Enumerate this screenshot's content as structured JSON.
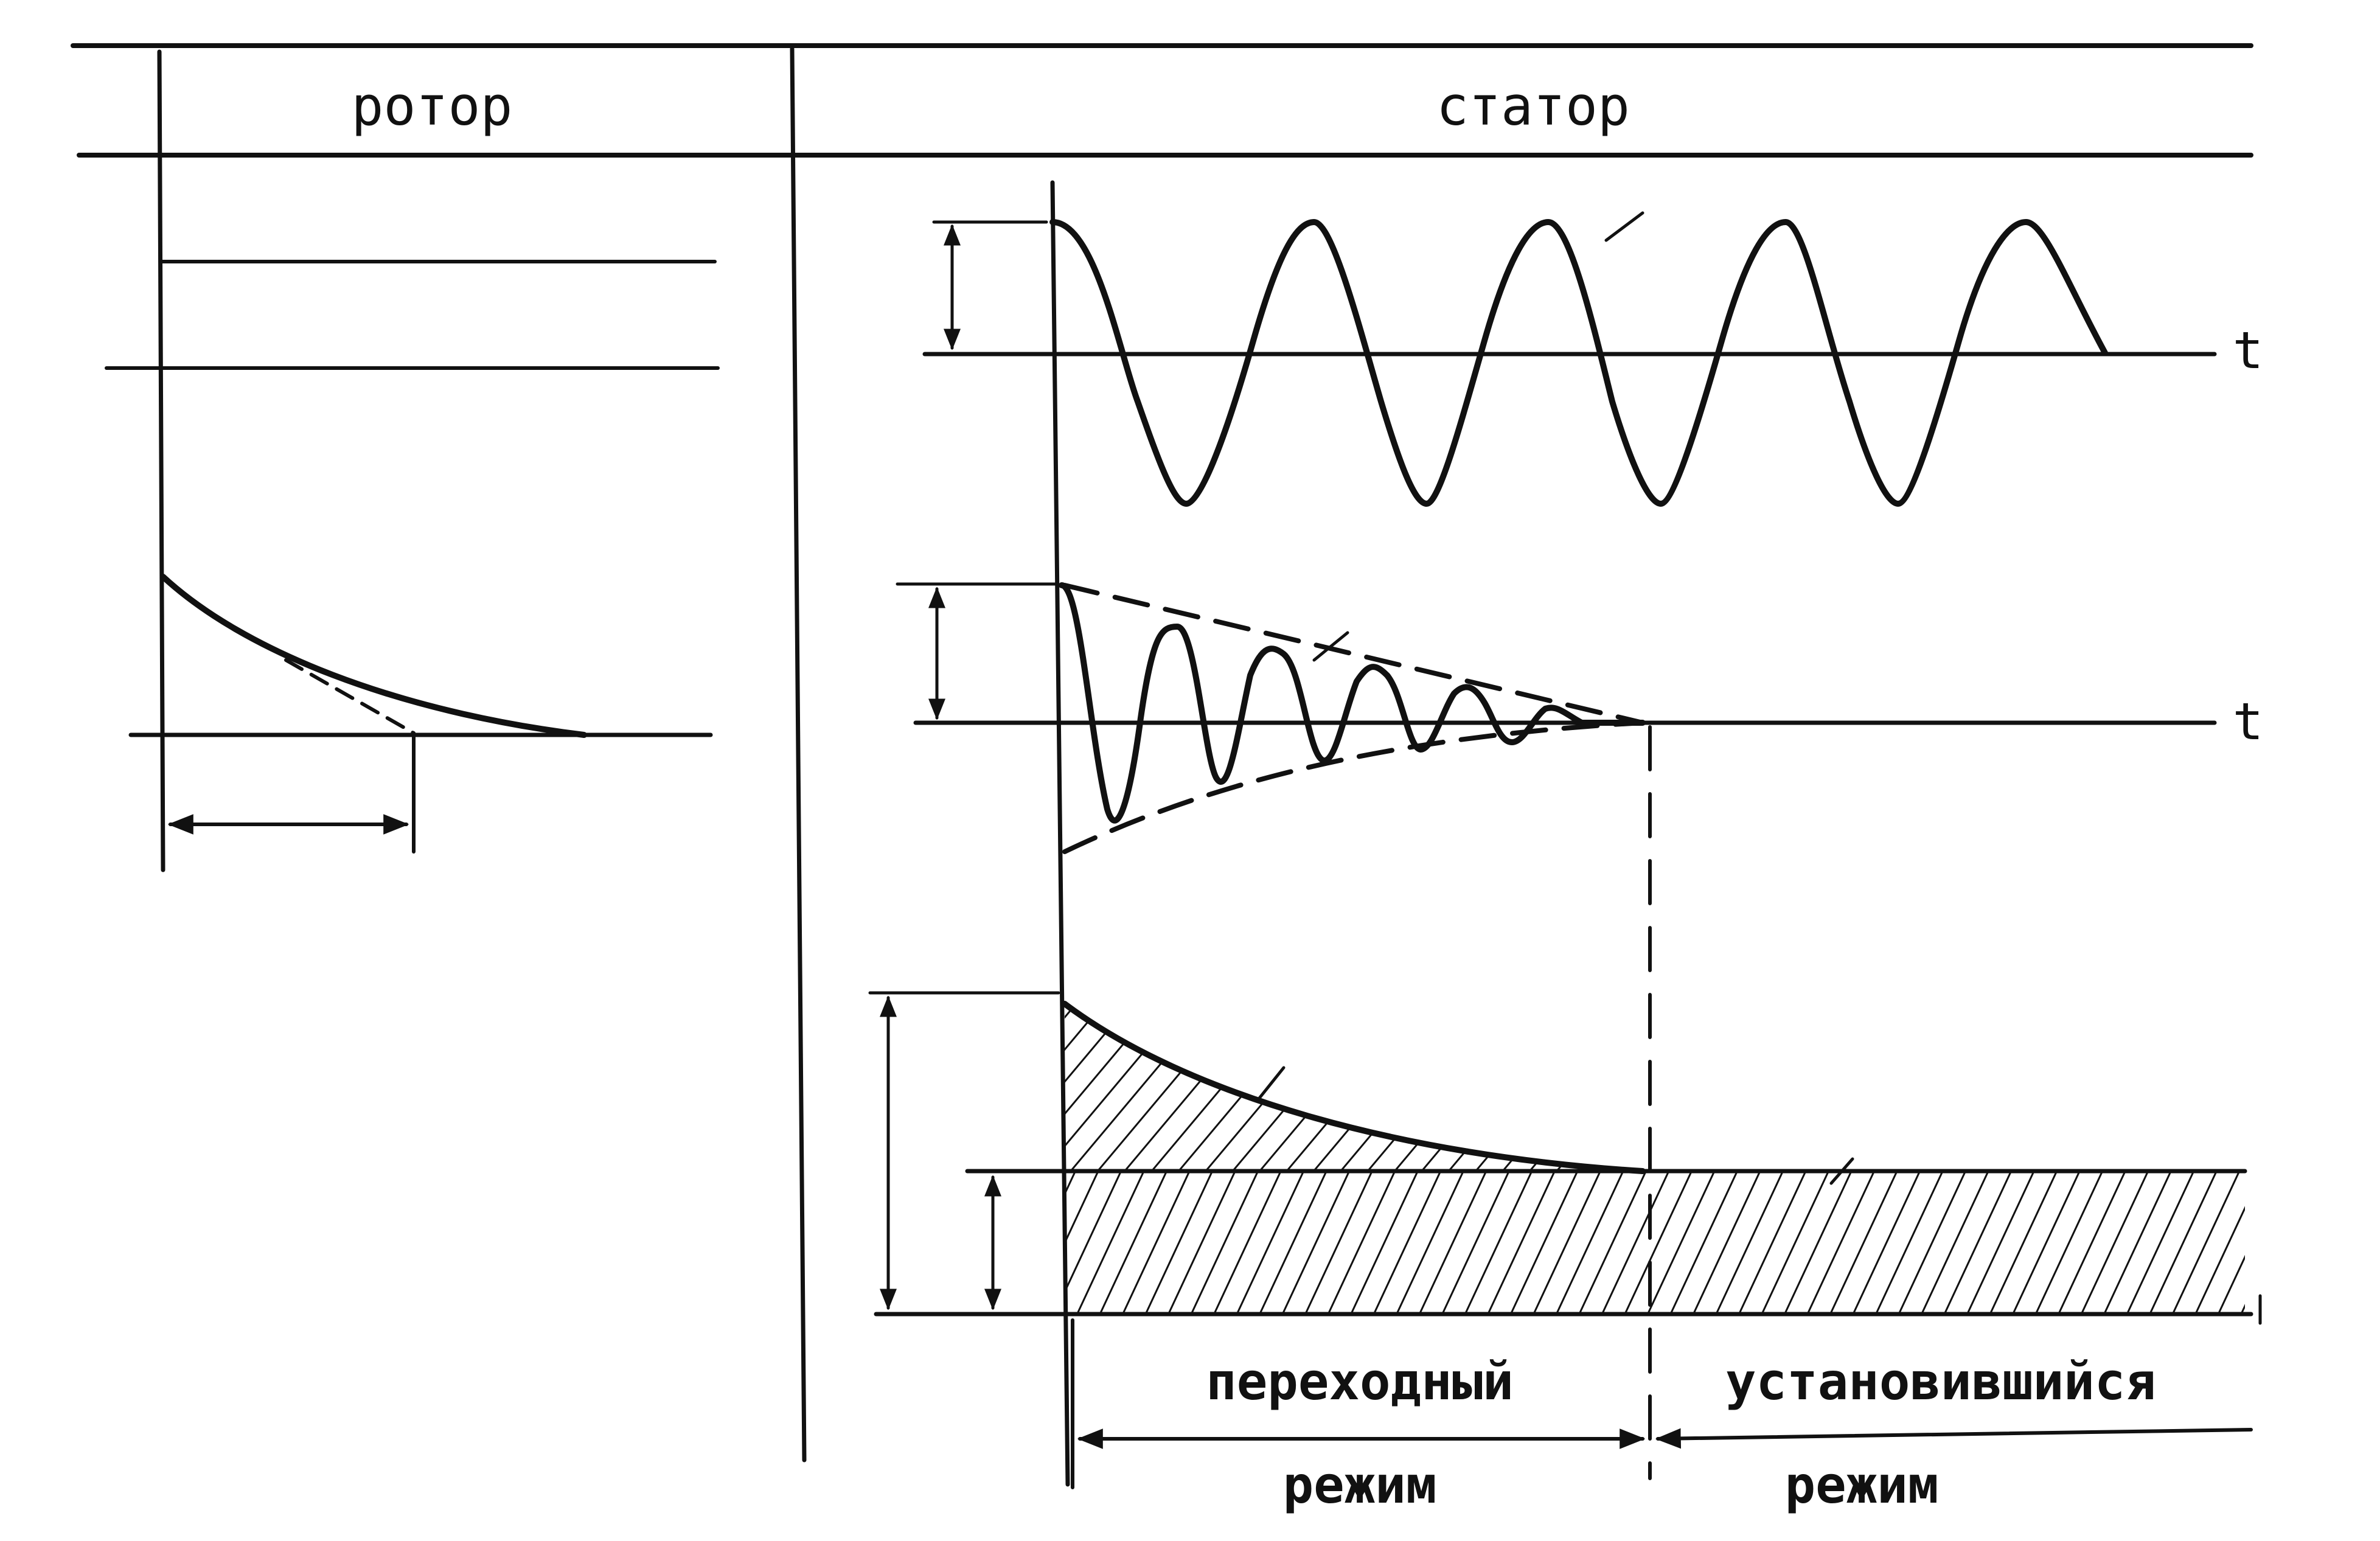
{
  "header": {
    "rotor": "ротор",
    "stator": "статор"
  },
  "axes": {
    "t1": "t",
    "t2": "t"
  },
  "modes": {
    "transient": "переходный",
    "steady": "установившийся",
    "regime_left": "режим",
    "regime_right": "режим"
  }
}
